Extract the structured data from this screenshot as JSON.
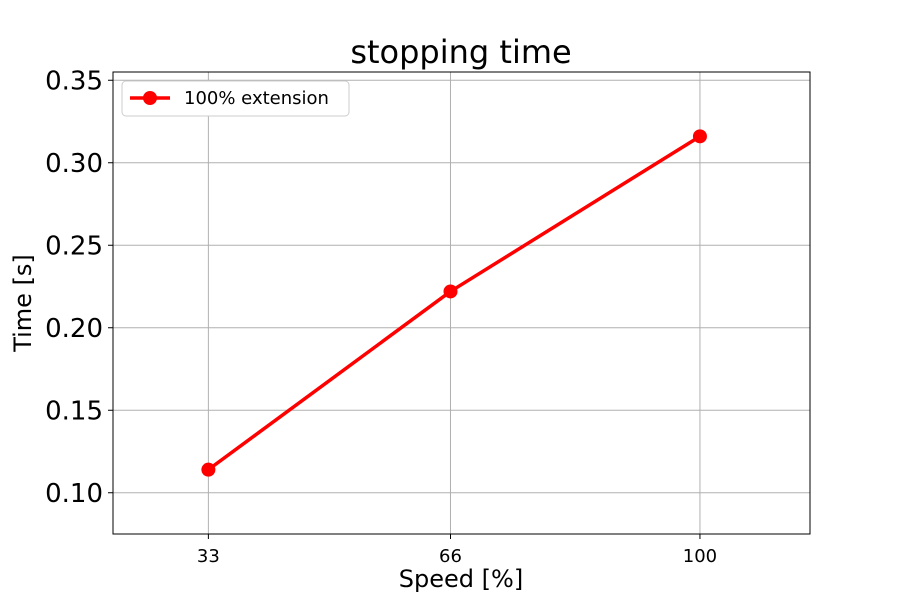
{
  "chart_data": {
    "type": "line",
    "title": "stopping time",
    "xlabel": "Speed [%]",
    "ylabel": "Time [s]",
    "x": [
      33,
      66,
      100
    ],
    "x_tick_labels": [
      "33",
      "66",
      "100"
    ],
    "xlim": [
      20,
      115
    ],
    "ylim": [
      0.075,
      0.355
    ],
    "y_ticks": [
      0.1,
      0.15,
      0.2,
      0.25,
      0.3,
      0.35
    ],
    "y_tick_labels": [
      "0.10",
      "0.15",
      "0.20",
      "0.25",
      "0.30",
      "0.35"
    ],
    "grid": true,
    "legend_position": "top-left",
    "series": [
      {
        "name": "100% extension",
        "color": "#ff0000",
        "marker": "circle",
        "values": [
          0.114,
          0.222,
          0.316
        ]
      }
    ]
  }
}
